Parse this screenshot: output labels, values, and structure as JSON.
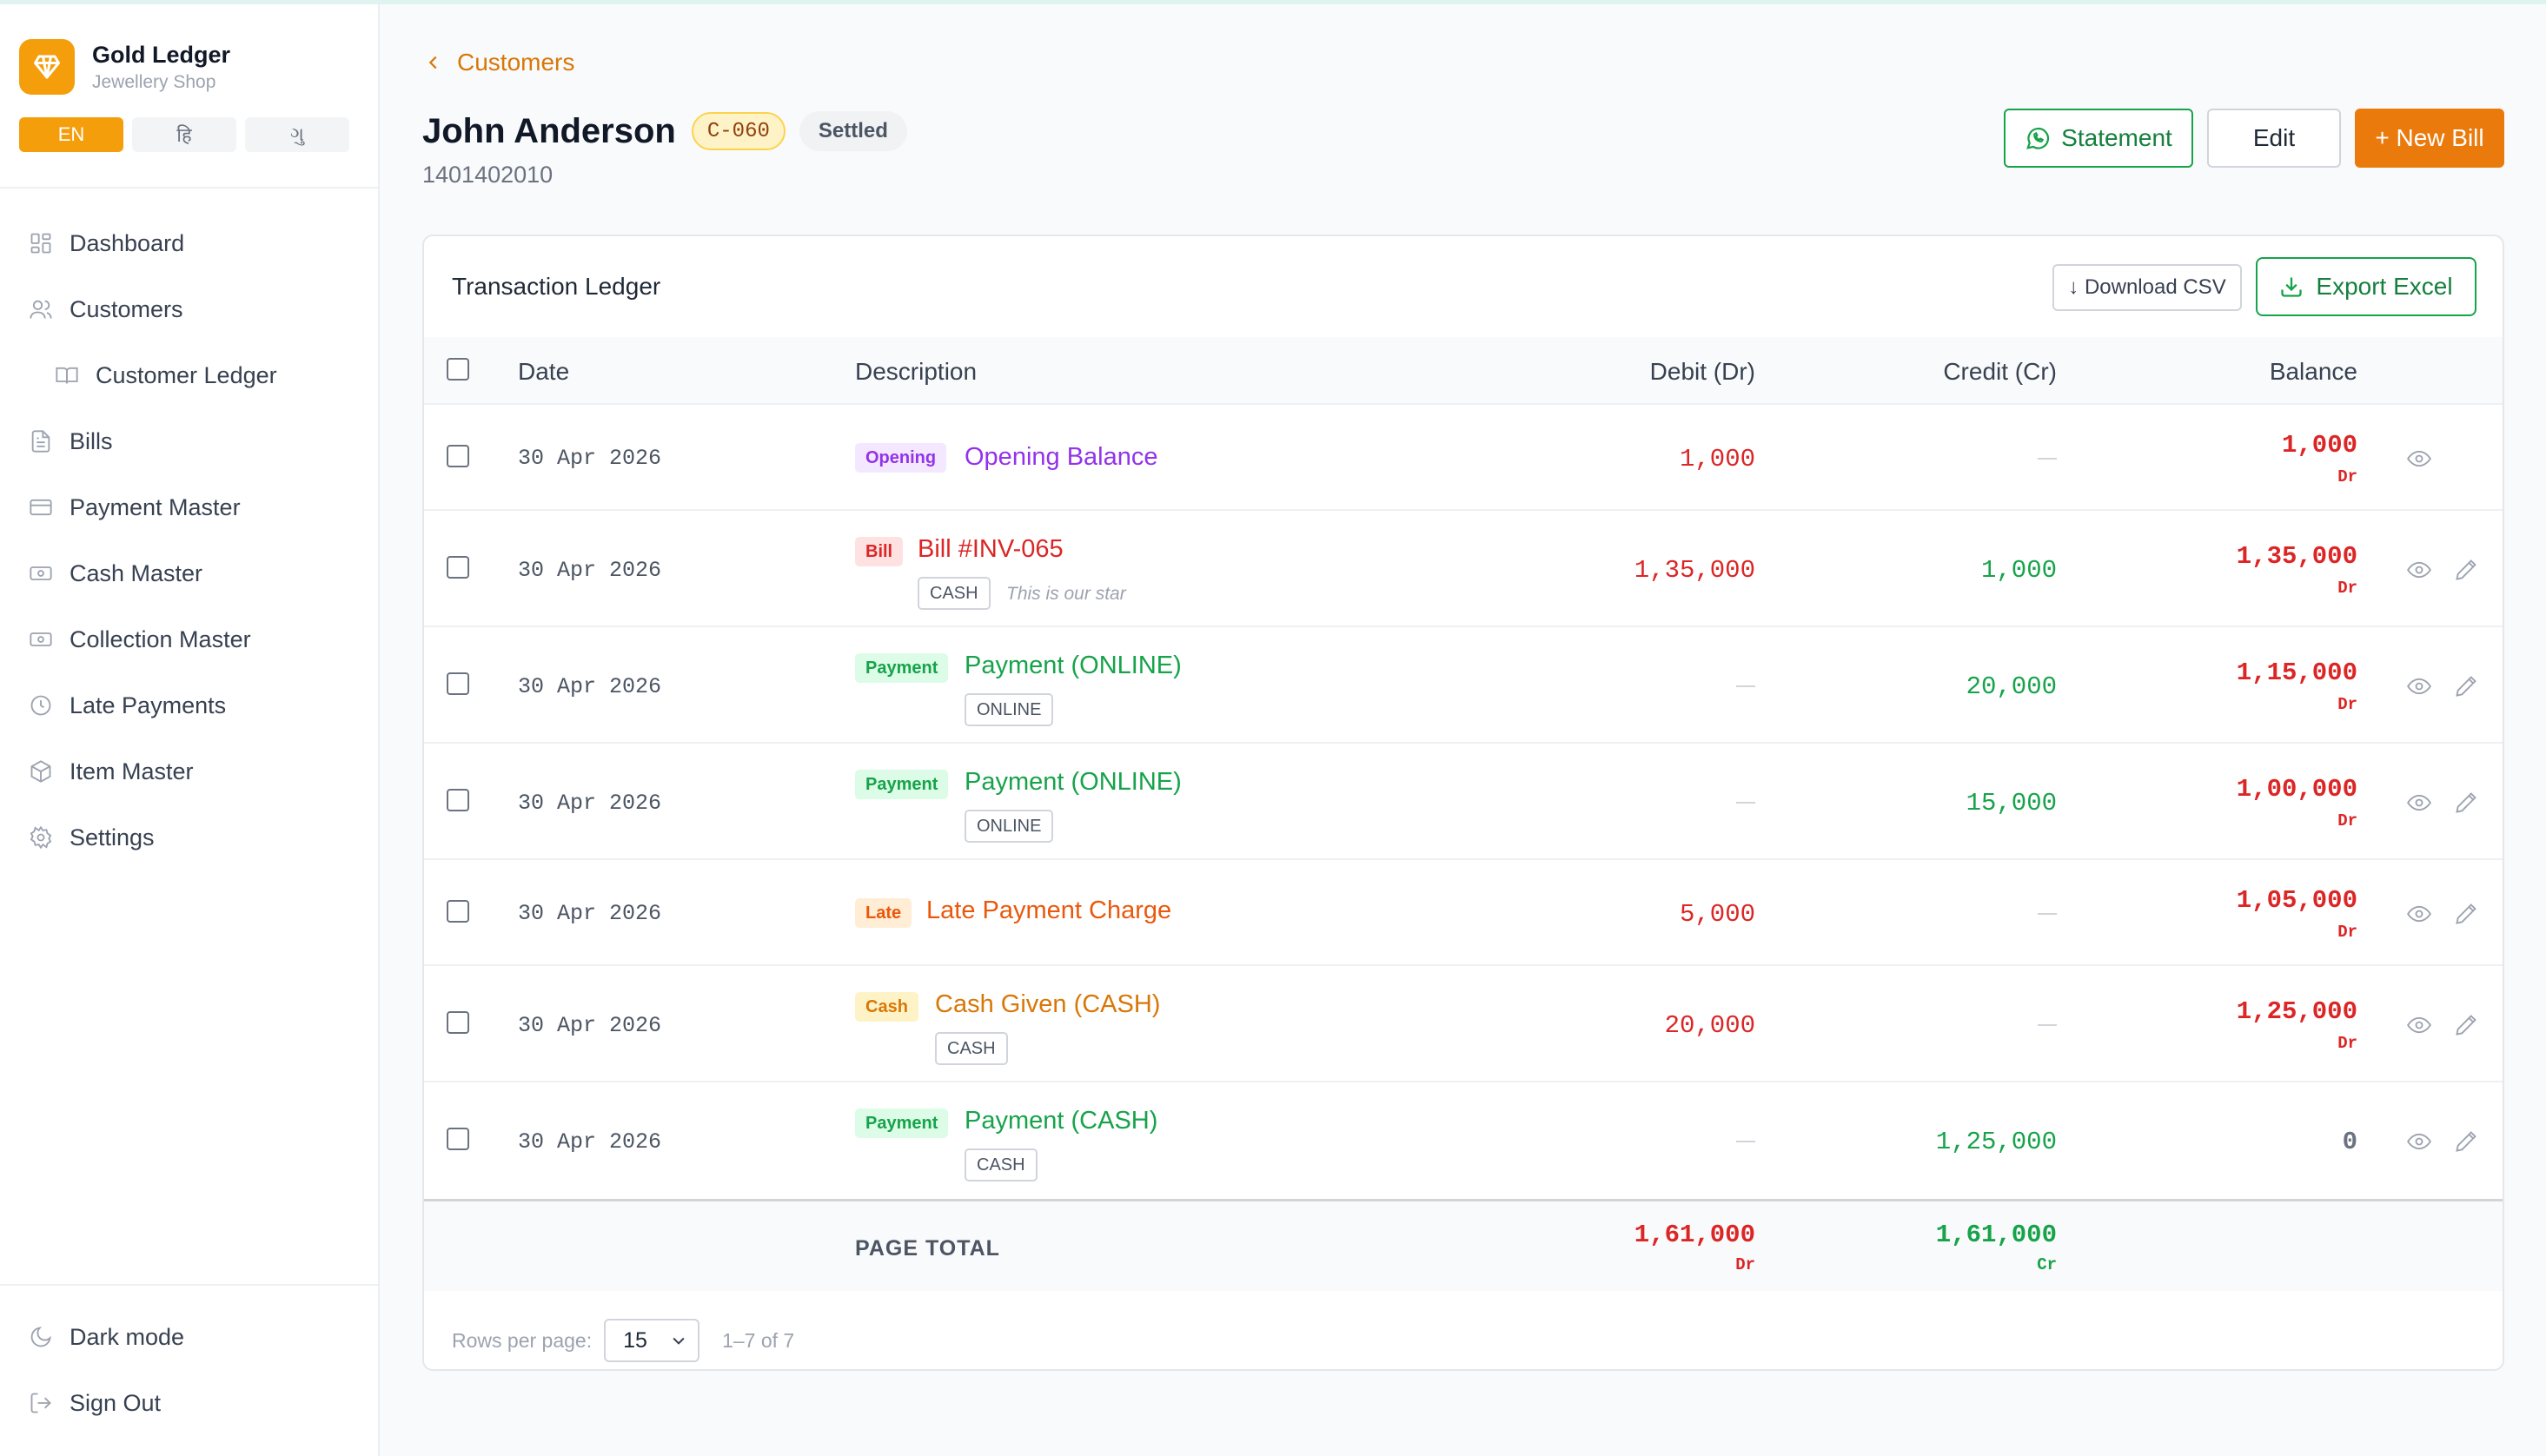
{
  "brand": {
    "name": "Gold Ledger",
    "subtitle": "Jewellery Shop"
  },
  "languages": [
    "EN",
    "हि",
    "ગુ"
  ],
  "active_language": "EN",
  "nav": [
    {
      "label": "Dashboard",
      "icon": "dashboard-icon"
    },
    {
      "label": "Customers",
      "icon": "users-icon"
    },
    {
      "label": "Customer Ledger",
      "icon": "book-icon",
      "sub": true
    },
    {
      "label": "Bills",
      "icon": "file-icon"
    },
    {
      "label": "Payment Master",
      "icon": "card-icon"
    },
    {
      "label": "Cash Master",
      "icon": "cash-icon"
    },
    {
      "label": "Collection Master",
      "icon": "cash-icon"
    },
    {
      "label": "Late Payments",
      "icon": "clock-icon"
    },
    {
      "label": "Item Master",
      "icon": "package-icon"
    },
    {
      "label": "Settings",
      "icon": "gear-icon"
    }
  ],
  "sidebar_bottom": {
    "dark_mode": "Dark mode",
    "sign_out": "Sign Out"
  },
  "breadcrumb": "Customers",
  "customer": {
    "name": "John Anderson",
    "code": "C-060",
    "status": "Settled",
    "phone": "1401402010"
  },
  "actions": {
    "statement": "Statement",
    "edit": "Edit",
    "new_bill": "+ New Bill"
  },
  "ledger": {
    "title": "Transaction Ledger",
    "download_csv": "↓ Download CSV",
    "export_excel": "Export Excel",
    "columns": {
      "date": "Date",
      "description": "Description",
      "debit": "Debit (Dr)",
      "credit": "Credit (Cr)",
      "balance": "Balance"
    },
    "rows": [
      {
        "date": "30 Apr 2026",
        "tag": "Opening",
        "desc": "Opening Balance",
        "mode": "",
        "note": "",
        "debit": "1,000",
        "credit": "",
        "balance": "1,000",
        "bal_suffix": "Dr",
        "editable": false
      },
      {
        "date": "30 Apr 2026",
        "tag": "Bill",
        "desc": "Bill #INV-065",
        "mode": "CASH",
        "note": "This is our star",
        "debit": "1,35,000",
        "credit": "1,000",
        "balance": "1,35,000",
        "bal_suffix": "Dr",
        "editable": true
      },
      {
        "date": "30 Apr 2026",
        "tag": "Payment",
        "desc": "Payment (ONLINE)",
        "mode": "ONLINE",
        "note": "",
        "debit": "",
        "credit": "20,000",
        "balance": "1,15,000",
        "bal_suffix": "Dr",
        "editable": true
      },
      {
        "date": "30 Apr 2026",
        "tag": "Payment",
        "desc": "Payment (ONLINE)",
        "mode": "ONLINE",
        "note": "",
        "debit": "",
        "credit": "15,000",
        "balance": "1,00,000",
        "bal_suffix": "Dr",
        "editable": true
      },
      {
        "date": "30 Apr 2026",
        "tag": "Late",
        "desc": "Late Payment Charge",
        "mode": "",
        "note": "",
        "debit": "5,000",
        "credit": "",
        "balance": "1,05,000",
        "bal_suffix": "Dr",
        "editable": true
      },
      {
        "date": "30 Apr 2026",
        "tag": "Cash",
        "desc": "Cash Given (CASH)",
        "mode": "CASH",
        "note": "",
        "debit": "20,000",
        "credit": "",
        "balance": "1,25,000",
        "bal_suffix": "Dr",
        "editable": true
      },
      {
        "date": "30 Apr 2026",
        "tag": "Payment",
        "desc": "Payment (CASH)",
        "mode": "CASH",
        "note": "",
        "debit": "",
        "credit": "1,25,000",
        "balance": "0",
        "bal_suffix": "",
        "editable": true
      }
    ],
    "page_total": {
      "label": "PAGE TOTAL",
      "debit": "1,61,000",
      "debit_suffix": "Dr",
      "credit": "1,61,000",
      "credit_suffix": "Cr"
    },
    "pagination": {
      "rows_per_page_label": "Rows per page:",
      "rows_per_page": "15",
      "range": "1–7 of 7"
    }
  },
  "colors": {
    "accent": "#f59e0b",
    "new_bill": "#ea7a0c",
    "debit": "#dc2626",
    "credit": "#16a34a",
    "tag_opening": "#9333ea",
    "tag_bill": "#dc2626",
    "tag_payment": "#16a34a",
    "tag_late": "#ea580c",
    "tag_cash": "#d97706"
  }
}
